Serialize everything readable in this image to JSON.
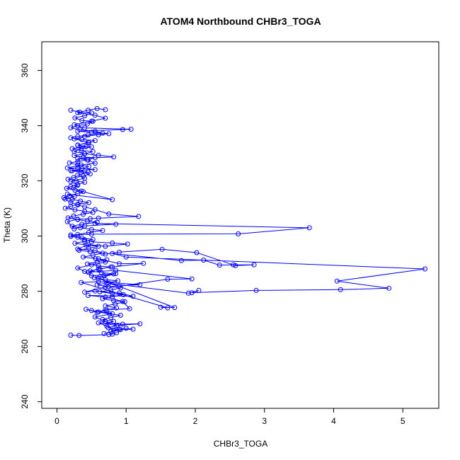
{
  "chart_data": {
    "type": "line",
    "title": "ATOM4 Northbound CHBr3_TOGA",
    "xlabel": "CHBr3_TOGA",
    "ylabel": "Theta (K)",
    "xlim": [
      -0.22,
      5.52
    ],
    "ylim": [
      237.6,
      370.4
    ],
    "xticks": [
      0,
      1,
      2,
      3,
      4,
      5
    ],
    "yticks": [
      240,
      260,
      280,
      300,
      320,
      340,
      360
    ],
    "grid": false,
    "legend": "none",
    "marker": "open-circle",
    "color": "#0000ff",
    "series": [
      {
        "values": [
          [
            0.2,
            264.1
          ],
          [
            0.32,
            264.0
          ],
          [
            0.75,
            264.3
          ],
          [
            0.8,
            264.5
          ],
          [
            0.86,
            265.0
          ],
          [
            0.92,
            266.1
          ],
          [
            1.1,
            266.3
          ],
          [
            1.0,
            266.6
          ],
          [
            0.82,
            266.0
          ],
          [
            0.72,
            267.4
          ],
          [
            0.6,
            268.6
          ],
          [
            0.95,
            268.1
          ],
          [
            1.2,
            268.2
          ],
          [
            0.88,
            267.7
          ],
          [
            0.7,
            269.1
          ],
          [
            0.55,
            270.7
          ],
          [
            0.8,
            271.9
          ],
          [
            0.5,
            273.0
          ],
          [
            0.42,
            273.5
          ],
          [
            0.58,
            272.4
          ],
          [
            0.7,
            273.3
          ],
          [
            1.05,
            273.7
          ],
          [
            0.95,
            276.3
          ],
          [
            0.7,
            277.9
          ],
          [
            0.45,
            278.5
          ],
          [
            1.1,
            278.2
          ],
          [
            0.9,
            279.4
          ],
          [
            0.55,
            280.1
          ],
          [
            0.4,
            279.7
          ],
          [
            0.7,
            281.6
          ],
          [
            1.2,
            282.4
          ],
          [
            0.6,
            283.5
          ],
          [
            0.35,
            283.2
          ],
          [
            1.6,
            274.0
          ],
          [
            1.5,
            274.2
          ],
          [
            1.7,
            274.1
          ],
          [
            0.6,
            284.7
          ],
          [
            0.85,
            286.4
          ],
          [
            0.5,
            285.6
          ],
          [
            0.4,
            287.2
          ],
          [
            0.3,
            288.4
          ],
          [
            0.5,
            289.6
          ],
          [
            0.7,
            290.6
          ],
          [
            0.6,
            291.8
          ],
          [
            0.9,
            290.0
          ],
          [
            1.25,
            290.1
          ],
          [
            0.8,
            288.8
          ],
          [
            0.6,
            288.1
          ],
          [
            0.45,
            286.9
          ],
          [
            0.85,
            287.6
          ],
          [
            1.95,
            284.5
          ],
          [
            1.6,
            284.4
          ],
          [
            0.9,
            281.8
          ],
          [
            0.75,
            282.9
          ],
          [
            1.9,
            279.3
          ],
          [
            2.05,
            280.3
          ],
          [
            1.95,
            279.5
          ],
          [
            2.88,
            280.3
          ],
          [
            4.1,
            280.6
          ],
          [
            4.8,
            281.1
          ],
          [
            4.05,
            283.7
          ],
          [
            5.32,
            288.1
          ],
          [
            1.0,
            292.4
          ],
          [
            0.8,
            293.7
          ],
          [
            1.8,
            291.1
          ],
          [
            2.12,
            291.3
          ],
          [
            2.35,
            289.5
          ],
          [
            2.55,
            289.6
          ],
          [
            2.85,
            289.6
          ],
          [
            2.58,
            289.3
          ],
          [
            2.02,
            294.0
          ],
          [
            1.52,
            295.2
          ],
          [
            0.9,
            294.2
          ],
          [
            0.7,
            293.5
          ],
          [
            0.55,
            294.8
          ],
          [
            0.3,
            295.3
          ],
          [
            0.45,
            296.9
          ],
          [
            0.7,
            296.3
          ],
          [
            1.02,
            297.1
          ],
          [
            0.8,
            297.5
          ],
          [
            0.5,
            297.9
          ],
          [
            0.4,
            298.7
          ],
          [
            0.3,
            299.6
          ],
          [
            0.2,
            300.4
          ],
          [
            0.5,
            300.7
          ],
          [
            2.62,
            300.8
          ],
          [
            3.65,
            303.0
          ],
          [
            0.55,
            304.6
          ],
          [
            0.85,
            304.3
          ],
          [
            0.4,
            303.7
          ],
          [
            0.25,
            302.6
          ],
          [
            0.15,
            305.2
          ],
          [
            0.3,
            306.1
          ],
          [
            0.48,
            306.3
          ],
          [
            0.6,
            306.5
          ],
          [
            1.18,
            307.1
          ],
          [
            0.75,
            308.0
          ],
          [
            0.55,
            309.6
          ],
          [
            0.4,
            310.6
          ],
          [
            0.3,
            311.3
          ],
          [
            0.2,
            312.2
          ],
          [
            0.12,
            313.4
          ],
          [
            0.25,
            314.3
          ],
          [
            0.15,
            315.2
          ],
          [
            0.8,
            313.2
          ],
          [
            0.35,
            316.3
          ],
          [
            0.24,
            317.5
          ],
          [
            0.3,
            318.4
          ],
          [
            0.2,
            319.7
          ],
          [
            0.4,
            321.0
          ],
          [
            0.3,
            322.1
          ],
          [
            0.45,
            323.2
          ],
          [
            0.2,
            323.7
          ],
          [
            0.55,
            324.1
          ],
          [
            0.3,
            324.6
          ],
          [
            0.15,
            324.7
          ],
          [
            0.35,
            325.8
          ],
          [
            0.55,
            326.4
          ],
          [
            0.45,
            327.5
          ],
          [
            0.3,
            328.1
          ],
          [
            0.82,
            328.7
          ],
          [
            0.6,
            329.3
          ],
          [
            0.4,
            329.8
          ],
          [
            0.25,
            330.6
          ],
          [
            0.35,
            331.7
          ],
          [
            0.5,
            332.3
          ],
          [
            0.3,
            332.9
          ],
          [
            0.45,
            334.0
          ],
          [
            0.25,
            335.2
          ],
          [
            0.4,
            336.1
          ],
          [
            0.6,
            336.7
          ],
          [
            0.75,
            337.1
          ],
          [
            0.5,
            337.6
          ],
          [
            0.3,
            338.0
          ],
          [
            0.95,
            338.6
          ],
          [
            1.07,
            338.7
          ],
          [
            0.4,
            339.2
          ],
          [
            0.25,
            340.3
          ],
          [
            0.5,
            341.6
          ],
          [
            0.7,
            342.7
          ],
          [
            0.55,
            343.8
          ],
          [
            0.3,
            344.7
          ],
          [
            0.45,
            345.6
          ],
          [
            0.58,
            346.2
          ],
          [
            0.7,
            345.8
          ]
        ]
      },
      {
        "values": [
          [
            0.2,
            345.6
          ],
          [
            0.33,
            344.9
          ],
          [
            0.5,
            344.6
          ],
          [
            0.4,
            343.6
          ],
          [
            0.26,
            342.8
          ],
          [
            0.36,
            341.9
          ],
          [
            0.52,
            341.6
          ],
          [
            0.44,
            340.6
          ],
          [
            0.3,
            340.0
          ],
          [
            0.2,
            339.2
          ],
          [
            0.33,
            338.6
          ],
          [
            0.55,
            338.0
          ],
          [
            0.66,
            337.3
          ],
          [
            0.45,
            336.6
          ],
          [
            0.3,
            336.1
          ],
          [
            0.2,
            335.6
          ],
          [
            0.36,
            335.0
          ],
          [
            0.55,
            334.6
          ],
          [
            0.46,
            333.8
          ],
          [
            0.3,
            333.0
          ],
          [
            0.42,
            332.4
          ],
          [
            0.22,
            331.7
          ],
          [
            0.35,
            331.1
          ],
          [
            0.52,
            330.6
          ],
          [
            0.4,
            329.8
          ],
          [
            0.25,
            329.2
          ],
          [
            0.38,
            328.6
          ],
          [
            0.55,
            328.4
          ],
          [
            0.44,
            327.6
          ],
          [
            0.3,
            327.0
          ],
          [
            0.18,
            326.5
          ],
          [
            0.3,
            325.8
          ],
          [
            0.46,
            325.2
          ],
          [
            0.36,
            324.4
          ],
          [
            0.22,
            323.7
          ],
          [
            0.35,
            323.1
          ],
          [
            0.48,
            322.5
          ],
          [
            0.38,
            321.8
          ],
          [
            0.24,
            321.2
          ],
          [
            0.16,
            320.6
          ],
          [
            0.28,
            320.0
          ],
          [
            0.4,
            319.5
          ],
          [
            0.3,
            318.7
          ],
          [
            0.2,
            318.0
          ],
          [
            0.14,
            317.3
          ],
          [
            0.26,
            316.6
          ],
          [
            0.38,
            316.1
          ],
          [
            0.3,
            315.4
          ],
          [
            0.18,
            314.6
          ],
          [
            0.1,
            313.9
          ],
          [
            0.22,
            313.3
          ],
          [
            0.34,
            312.7
          ],
          [
            0.46,
            312.1
          ],
          [
            0.3,
            311.5
          ],
          [
            0.2,
            310.8
          ],
          [
            0.12,
            310.1
          ],
          [
            0.26,
            309.5
          ],
          [
            0.4,
            309.0
          ],
          [
            0.52,
            308.6
          ],
          [
            0.38,
            307.9
          ],
          [
            0.24,
            307.3
          ],
          [
            0.16,
            306.6
          ],
          [
            0.3,
            306.0
          ],
          [
            0.44,
            305.4
          ],
          [
            0.58,
            305.0
          ],
          [
            0.36,
            304.3
          ],
          [
            0.22,
            303.6
          ],
          [
            0.34,
            303.0
          ],
          [
            0.5,
            302.4
          ],
          [
            0.66,
            302.0
          ],
          [
            0.46,
            301.3
          ],
          [
            0.3,
            300.6
          ],
          [
            0.2,
            299.9
          ],
          [
            0.36,
            299.3
          ],
          [
            0.52,
            298.8
          ],
          [
            0.4,
            298.1
          ],
          [
            0.26,
            297.4
          ],
          [
            0.42,
            296.8
          ],
          [
            0.6,
            296.3
          ],
          [
            0.46,
            295.6
          ],
          [
            0.32,
            294.9
          ],
          [
            0.48,
            294.3
          ],
          [
            0.66,
            293.8
          ],
          [
            0.52,
            293.1
          ],
          [
            0.38,
            292.4
          ],
          [
            0.56,
            291.8
          ],
          [
            0.72,
            291.4
          ],
          [
            0.58,
            290.6
          ],
          [
            0.44,
            289.9
          ],
          [
            0.6,
            289.2
          ],
          [
            0.78,
            288.8
          ],
          [
            0.62,
            288.1
          ],
          [
            0.48,
            287.4
          ],
          [
            0.64,
            286.8
          ],
          [
            0.82,
            286.3
          ],
          [
            0.68,
            285.6
          ],
          [
            0.54,
            284.9
          ],
          [
            0.7,
            284.2
          ],
          [
            0.88,
            283.8
          ],
          [
            0.72,
            283.0
          ],
          [
            0.58,
            282.3
          ],
          [
            0.74,
            281.7
          ],
          [
            0.92,
            281.2
          ],
          [
            0.78,
            280.5
          ],
          [
            0.62,
            279.8
          ],
          [
            0.8,
            279.2
          ],
          [
            0.96,
            278.8
          ],
          [
            0.8,
            278.0
          ],
          [
            0.66,
            277.3
          ],
          [
            0.82,
            276.6
          ],
          [
            0.98,
            276.2
          ],
          [
            0.84,
            275.4
          ],
          [
            0.7,
            274.7
          ],
          [
            0.86,
            274.0
          ],
          [
            0.72,
            273.2
          ],
          [
            0.6,
            272.5
          ],
          [
            0.76,
            271.8
          ],
          [
            0.92,
            271.3
          ],
          [
            0.78,
            270.5
          ],
          [
            0.66,
            269.8
          ],
          [
            0.82,
            269.1
          ],
          [
            0.7,
            268.3
          ],
          [
            0.86,
            267.6
          ],
          [
            0.74,
            266.8
          ],
          [
            0.9,
            266.2
          ],
          [
            0.78,
            265.4
          ],
          [
            0.68,
            264.7
          ]
        ]
      }
    ]
  }
}
